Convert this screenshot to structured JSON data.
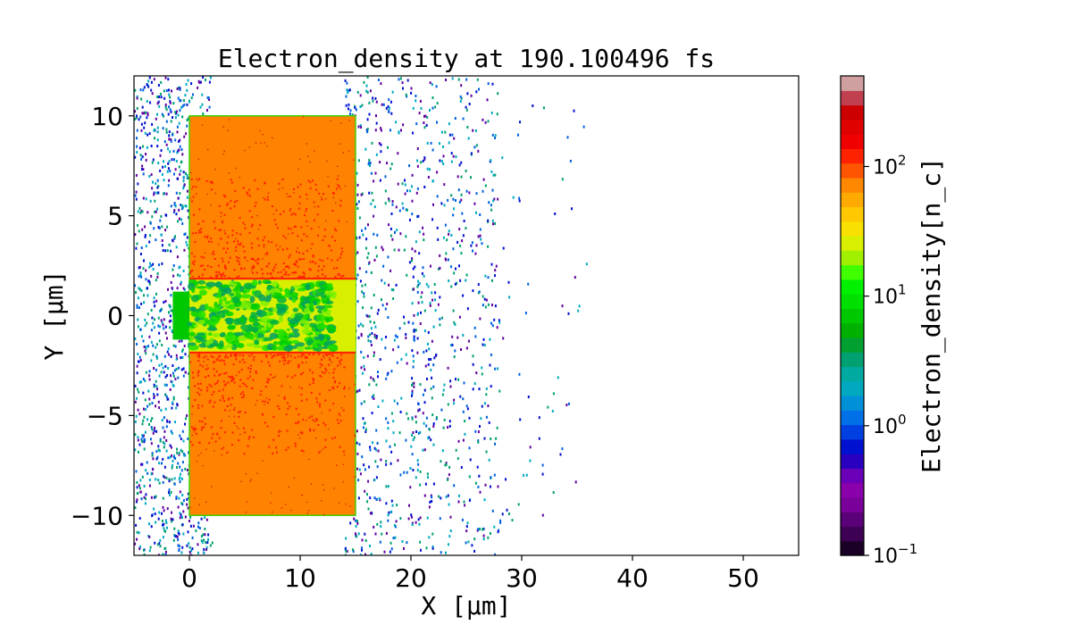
{
  "chart_data": {
    "type": "heatmap",
    "title": "Electron_density at 190.100496 fs",
    "xlabel": "X [μm]",
    "ylabel": "Y [μm]",
    "xlim": [
      -5,
      55
    ],
    "ylim": [
      -12,
      12
    ],
    "x_ticks": [
      0,
      10,
      20,
      30,
      40,
      50
    ],
    "x_tick_labels": [
      "0",
      "10",
      "20",
      "30",
      "40",
      "50"
    ],
    "y_ticks": [
      10,
      5,
      0,
      -5,
      -10
    ],
    "y_tick_labels": [
      "10",
      "5",
      "0",
      "−5",
      "−10"
    ],
    "colorbar": {
      "label": "Electron_density[n_c]",
      "scale": "log",
      "range": [
        0.1,
        500
      ],
      "ticks": [
        {
          "value": 100,
          "base": "10",
          "exp": "2"
        },
        {
          "value": 10,
          "base": "10",
          "exp": "1"
        },
        {
          "value": 1,
          "base": "10",
          "exp": "0"
        },
        {
          "value": 0.1,
          "base": "10",
          "exp": "−1"
        }
      ],
      "colors": [
        "#1a0026",
        "#3d0055",
        "#5a0078",
        "#7a009a",
        "#8a00aa",
        "#6a00b8",
        "#2a00c0",
        "#0010d0",
        "#0040e0",
        "#0070e8",
        "#0090d8",
        "#00a8c0",
        "#00aaa0",
        "#00a070",
        "#00a030",
        "#00b000",
        "#00c800",
        "#00e000",
        "#00f000",
        "#40ff00",
        "#a0f000",
        "#d8f000",
        "#f8e000",
        "#ffc800",
        "#ffaa00",
        "#ff8800",
        "#ff5500",
        "#ff2200",
        "#f00000",
        "#e00000",
        "#cc0000",
        "#c04050",
        "#d0a0a0"
      ]
    },
    "target": {
      "x_range": [
        0,
        15
      ],
      "y_range": [
        -10,
        10
      ],
      "density": 100,
      "color": "#ff8200"
    },
    "channel": {
      "x_range": [
        0,
        15
      ],
      "y_range": [
        -1.8,
        1.8
      ],
      "density": 20,
      "color": "#d8f000"
    },
    "channel_edge_color": "#ff2000",
    "scatter_colors": [
      "#0010d0",
      "#0060e0",
      "#00aac0",
      "#6000a0",
      "#00a070"
    ]
  }
}
